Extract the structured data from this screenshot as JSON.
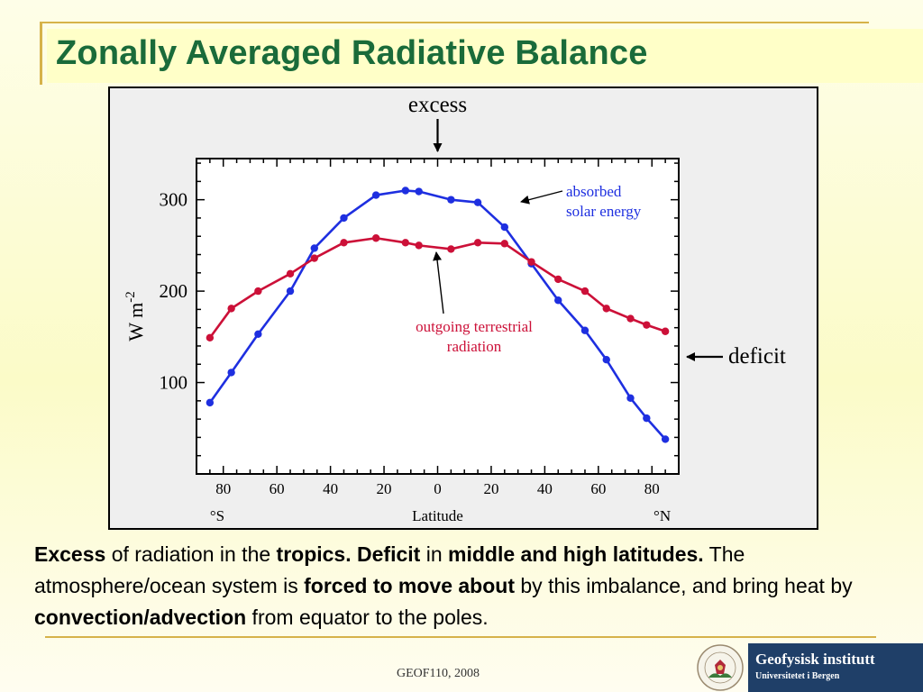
{
  "slide": {
    "title": "Zonally Averaged Radiative Balance",
    "caption": [
      {
        "text": "Excess",
        "bold": true
      },
      {
        "text": " of radiation in the ",
        "bold": false
      },
      {
        "text": "tropics. Deficit",
        "bold": true
      },
      {
        "text": " in ",
        "bold": false
      },
      {
        "text": "middle and high latitudes.",
        "bold": true
      },
      {
        "text": " The atmosphere/ocean system is ",
        "bold": false
      },
      {
        "text": "forced to move about",
        "bold": true
      },
      {
        "text": " by this imbalance, and bring heat by ",
        "bold": false
      },
      {
        "text": "convection/advection",
        "bold": true
      },
      {
        "text": " from equator to the poles.",
        "bold": false
      }
    ],
    "footer": "GEOF110, 2008",
    "logo": {
      "name": "Geofysisk institutt",
      "subtitle": "Universitetet i Bergen",
      "seal_text": "UNIVERSITAS BERGENSIS"
    }
  },
  "chart_data": {
    "type": "line",
    "title": "",
    "xlabel": "Latitude",
    "ylabel": "W m-2",
    "ylabel_main": "W m",
    "ylabel_sup": "-2",
    "xlim": [
      -90,
      90
    ],
    "ylim": [
      0,
      345
    ],
    "grid": false,
    "x_ticks": [
      {
        "value": -80,
        "label": "80"
      },
      {
        "value": -60,
        "label": "60"
      },
      {
        "value": -40,
        "label": "40"
      },
      {
        "value": -20,
        "label": "20"
      },
      {
        "value": 0,
        "label": "0"
      },
      {
        "value": 20,
        "label": "20"
      },
      {
        "value": 40,
        "label": "40"
      },
      {
        "value": 60,
        "label": "60"
      },
      {
        "value": 80,
        "label": "80"
      }
    ],
    "x_minor_ticks": [
      -90,
      -85,
      -80,
      -75,
      -70,
      -65,
      -60,
      -55,
      -50,
      -45,
      -40,
      -35,
      -30,
      -25,
      -20,
      -15,
      -10,
      -5,
      0,
      5,
      10,
      15,
      20,
      25,
      30,
      35,
      40,
      45,
      50,
      55,
      60,
      65,
      70,
      75,
      80,
      85,
      90
    ],
    "x_hemisphere_labels": {
      "south": "°S",
      "north": "°N"
    },
    "y_ticks": [
      100,
      200,
      300
    ],
    "y_minor_ticks": [
      20,
      40,
      60,
      80,
      100,
      120,
      140,
      160,
      180,
      200,
      220,
      240,
      260,
      280,
      300,
      320,
      340
    ],
    "series": [
      {
        "name": "absorbed solar energy",
        "color": "#1e2fe0",
        "label_lines": [
          "absorbed",
          "solar energy"
        ],
        "x": [
          -85,
          -77,
          -67,
          -55,
          -46,
          -35,
          -23,
          -12,
          -7,
          5,
          15,
          25,
          35,
          45,
          55,
          63,
          72,
          78,
          85
        ],
        "y": [
          78,
          111,
          153,
          200,
          247,
          280,
          305,
          310,
          309,
          300,
          297,
          270,
          230,
          190,
          157,
          125,
          83,
          61,
          38
        ]
      },
      {
        "name": "outgoing terrestrial radiation",
        "color": "#cc1038",
        "label_lines": [
          "outgoing terrestrial",
          "radiation"
        ],
        "x": [
          -85,
          -77,
          -67,
          -55,
          -46,
          -35,
          -23,
          -12,
          -7,
          5,
          15,
          25,
          35,
          45,
          55,
          63,
          72,
          78,
          85
        ],
        "y": [
          149,
          181,
          200,
          219,
          236,
          253,
          258,
          253,
          250,
          246,
          253,
          252,
          232,
          213,
          200,
          181,
          170,
          163,
          156
        ]
      }
    ],
    "annotations": [
      {
        "text": "excess",
        "color": "#000000"
      },
      {
        "text": "deficit",
        "color": "#000000"
      }
    ]
  }
}
